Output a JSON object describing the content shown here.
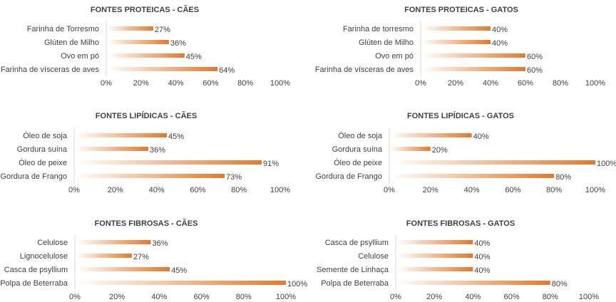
{
  "colors": {
    "bar_start": "#ffffff",
    "bar_end": "#e07a2e",
    "axis": "#d9d9d9",
    "text": "#404040"
  },
  "chart_data": [
    {
      "type": "bar",
      "orientation": "horizontal",
      "title": "FONTES PROTEICAS - CÃES",
      "categories": [
        "Farinha de Torresmo",
        "Glúten de Milho",
        "Ovo em pó",
        "Farinha de vísceras de aves"
      ],
      "values": [
        27,
        36,
        45,
        64
      ],
      "value_labels": [
        "27%",
        "36%",
        "45%",
        "64%"
      ],
      "xlim": [
        0,
        100
      ],
      "ticks": [
        "0%",
        "20%",
        "40%",
        "60%",
        "80%",
        "100%"
      ]
    },
    {
      "type": "bar",
      "orientation": "horizontal",
      "title": "FONTES PROTEICAS - GATOS",
      "categories": [
        "Farinha de torresmo",
        "Glúten de Milho",
        "Ovo em pó",
        "Farinha de vísceras de aves"
      ],
      "values": [
        40,
        40,
        60,
        60
      ],
      "value_labels": [
        "40%",
        "40%",
        "60%",
        "60%"
      ],
      "xlim": [
        0,
        100
      ],
      "ticks": [
        "0%",
        "20%",
        "40%",
        "60%",
        "80%",
        "100%"
      ]
    },
    {
      "type": "bar",
      "orientation": "horizontal",
      "title": "FONTES LIPÍDICAS - CÃES",
      "categories": [
        "Óleo de soja",
        "Gordura suína",
        "Óleo de peixe",
        "Gordura de Frango"
      ],
      "values": [
        45,
        36,
        91,
        73
      ],
      "value_labels": [
        "45%",
        "36%",
        "91%",
        "73%"
      ],
      "xlim": [
        0,
        100
      ],
      "ticks": [
        "0%",
        "20%",
        "40%",
        "60%",
        "80%",
        "100%"
      ]
    },
    {
      "type": "bar",
      "orientation": "horizontal",
      "title": "FONTES LIPÍDICAS - GATOS",
      "categories": [
        "Óleo de soja",
        "Gordura suína",
        "Óleo de peixe",
        "Gordura de Frango"
      ],
      "values": [
        40,
        20,
        100,
        80
      ],
      "value_labels": [
        "40%",
        "20%",
        "100%",
        "80%"
      ],
      "xlim": [
        0,
        100
      ],
      "ticks": [
        "0%",
        "20%",
        "40%",
        "60%",
        "80%",
        "100%"
      ]
    },
    {
      "type": "bar",
      "orientation": "horizontal",
      "title": "FONTES FIBROSAS - CÃES",
      "categories": [
        "Celulose",
        "Lignocelulose",
        "Casca de psyllium",
        "Polpa de Beterraba"
      ],
      "values": [
        36,
        27,
        45,
        100
      ],
      "value_labels": [
        "36%",
        "27%",
        "45%",
        "100%"
      ],
      "xlim": [
        0,
        100
      ],
      "ticks": [
        "0%",
        "20%",
        "40%",
        "60%",
        "80%",
        "100%"
      ]
    },
    {
      "type": "bar",
      "orientation": "horizontal",
      "title": "FONTES FIBROSAS - GATOS",
      "categories": [
        "Casca de psyllium",
        "Celulose",
        "Semente de Linhaça",
        "Polpa de Beterraba"
      ],
      "values": [
        40,
        40,
        40,
        80
      ],
      "value_labels": [
        "40%",
        "40%",
        "40%",
        "80%"
      ],
      "xlim": [
        0,
        100
      ],
      "ticks": [
        "0%",
        "20%",
        "40%",
        "60%",
        "80%",
        "100%"
      ]
    }
  ]
}
